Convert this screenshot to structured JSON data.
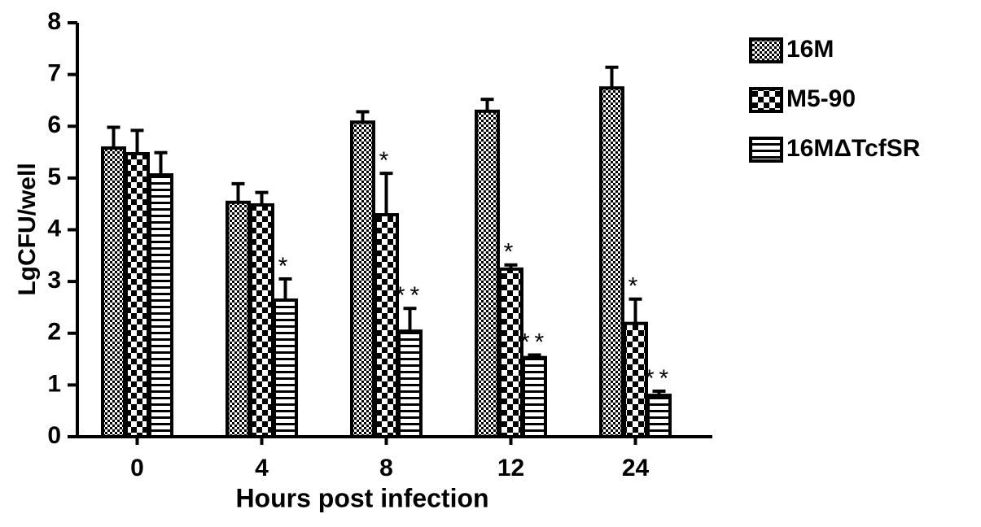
{
  "chart_data": {
    "type": "bar",
    "x_label": "Hours post infection",
    "y_label": "LgCFU/well",
    "categories": [
      "0",
      "4",
      "8",
      "12",
      "24"
    ],
    "series": [
      {
        "name": "16M",
        "color": "#000000",
        "pattern": "fine-check",
        "values": [
          5.58,
          4.53,
          6.08,
          6.29,
          6.74
        ],
        "errors": [
          0.4,
          0.36,
          0.2,
          0.23,
          0.4
        ],
        "annotations": [
          null,
          null,
          null,
          null,
          null
        ]
      },
      {
        "name": "M5-90",
        "color": "#000000",
        "pattern": "coarse-check",
        "values": [
          5.47,
          4.48,
          4.29,
          3.24,
          2.19
        ],
        "errors": [
          0.45,
          0.24,
          0.8,
          0.08,
          0.47
        ],
        "annotations": [
          null,
          null,
          "*",
          "*",
          "*"
        ]
      },
      {
        "name": "16MΔTcfSR",
        "color": "#000000",
        "pattern": "stripes",
        "values": [
          5.06,
          2.64,
          2.04,
          1.53,
          0.8
        ],
        "errors": [
          0.43,
          0.41,
          0.44,
          0.05,
          0.08
        ],
        "annotations": [
          null,
          "*",
          "**",
          "**",
          "**"
        ]
      }
    ],
    "ylim": [
      0,
      8
    ],
    "yticks": [
      0,
      1,
      2,
      3,
      4,
      5,
      6,
      7,
      8
    ],
    "grid": false,
    "legend": "right"
  }
}
